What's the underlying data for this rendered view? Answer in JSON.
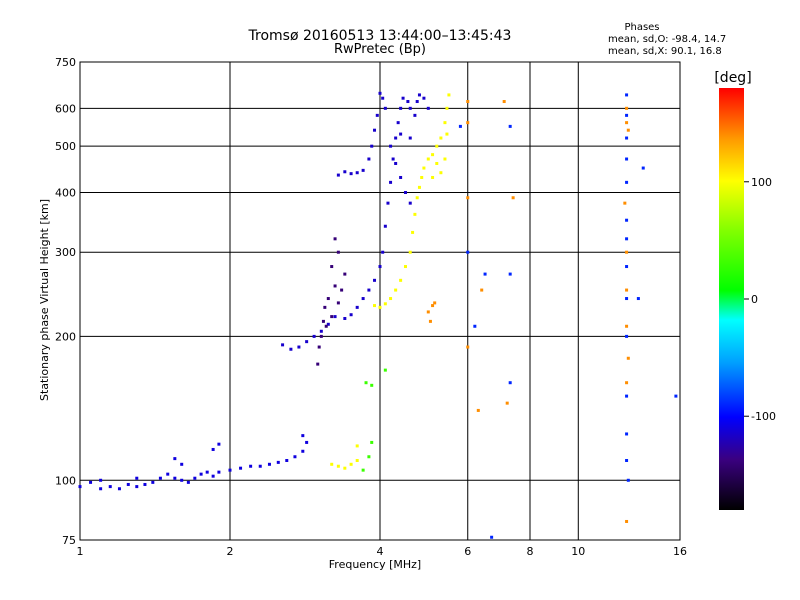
{
  "chart_data": {
    "type": "scatter",
    "title": "Tromsø 20160513 13:44:00–13:45:43",
    "subtitle": "RwPretec (Bp)",
    "xlabel": "Frequency [MHz]",
    "ylabel": "Stationary phase Virtual Height [km]",
    "x_scale": "log",
    "y_scale": "log",
    "xlim": [
      1,
      16
    ],
    "ylim": [
      75,
      750
    ],
    "x_ticks": [
      1,
      2,
      4,
      6,
      8,
      10,
      16
    ],
    "x_tick_labels": [
      "1",
      "2",
      "4",
      "6",
      "8",
      "10",
      "16"
    ],
    "y_ticks": [
      75,
      100,
      200,
      300,
      400,
      500,
      600,
      750
    ],
    "y_tick_labels": [
      "75",
      "100",
      "200",
      "300",
      "400",
      "500",
      "600",
      "750"
    ],
    "grid": true,
    "grid_x": [
      2,
      4,
      6,
      8,
      10
    ],
    "grid_y": [
      100,
      200,
      300,
      400,
      500,
      600
    ],
    "phase_stats": {
      "title": "Phases",
      "line1": "mean, sd,O:  -98.4, 14.7",
      "line2": "mean, sd,X:   90.1, 16.8"
    },
    "colorbar": {
      "label": "[deg]",
      "range": [
        -180,
        180
      ],
      "ticks": [
        100,
        0,
        -100
      ],
      "tick_labels": [
        "100",
        "0",
        "-100"
      ]
    },
    "series": [
      {
        "phase": -110,
        "points": [
          [
            1.0,
            97
          ],
          [
            1.05,
            99
          ],
          [
            1.1,
            96
          ],
          [
            1.15,
            97
          ],
          [
            1.2,
            96
          ],
          [
            1.25,
            98
          ],
          [
            1.3,
            97
          ],
          [
            1.35,
            98
          ],
          [
            1.4,
            99
          ],
          [
            1.45,
            101
          ],
          [
            1.5,
            103
          ],
          [
            1.55,
            101
          ],
          [
            1.6,
            100
          ],
          [
            1.65,
            99
          ],
          [
            1.7,
            101
          ],
          [
            1.75,
            103
          ],
          [
            1.8,
            104
          ],
          [
            1.85,
            102
          ],
          [
            1.9,
            104
          ],
          [
            2.0,
            105
          ],
          [
            2.1,
            106
          ],
          [
            2.2,
            107
          ],
          [
            2.3,
            107
          ],
          [
            2.4,
            108
          ],
          [
            2.5,
            109
          ],
          [
            2.6,
            110
          ],
          [
            2.7,
            112
          ],
          [
            2.8,
            115
          ],
          [
            2.85,
            120
          ],
          [
            2.8,
            124
          ],
          [
            1.85,
            116
          ],
          [
            1.9,
            119
          ],
          [
            1.6,
            108
          ],
          [
            1.55,
            111
          ],
          [
            1.3,
            101
          ],
          [
            1.1,
            100
          ]
        ]
      },
      {
        "phase": -115,
        "points": [
          [
            2.55,
            192
          ],
          [
            2.65,
            188
          ],
          [
            2.75,
            190
          ],
          [
            2.85,
            195
          ],
          [
            2.95,
            200
          ],
          [
            3.05,
            205
          ],
          [
            3.15,
            212
          ],
          [
            3.25,
            220
          ],
          [
            3.4,
            218
          ],
          [
            3.5,
            222
          ],
          [
            3.6,
            230
          ],
          [
            3.7,
            240
          ],
          [
            3.8,
            250
          ],
          [
            3.9,
            262
          ],
          [
            4.0,
            280
          ],
          [
            4.05,
            300
          ],
          [
            4.1,
            340
          ],
          [
            4.15,
            380
          ],
          [
            4.2,
            420
          ],
          [
            4.25,
            470
          ],
          [
            4.3,
            520
          ],
          [
            4.35,
            560
          ],
          [
            4.4,
            600
          ],
          [
            4.45,
            630
          ],
          [
            4.55,
            620
          ],
          [
            4.6,
            600
          ],
          [
            4.7,
            580
          ],
          [
            4.75,
            620
          ],
          [
            4.8,
            640
          ],
          [
            4.9,
            630
          ],
          [
            5.0,
            600
          ],
          [
            4.1,
            600
          ],
          [
            4.05,
            630
          ],
          [
            4.0,
            645
          ],
          [
            3.95,
            580
          ],
          [
            3.9,
            540
          ],
          [
            3.85,
            500
          ],
          [
            3.8,
            470
          ],
          [
            3.7,
            445
          ],
          [
            3.6,
            440
          ],
          [
            3.5,
            438
          ],
          [
            3.4,
            442
          ],
          [
            3.3,
            435
          ],
          [
            4.2,
            500
          ],
          [
            4.3,
            460
          ],
          [
            4.4,
            430
          ],
          [
            4.5,
            400
          ],
          [
            4.6,
            380
          ],
          [
            4.4,
            530
          ],
          [
            4.6,
            520
          ]
        ]
      },
      {
        "phase": -140,
        "points": [
          [
            3.0,
            175
          ],
          [
            3.02,
            190
          ],
          [
            3.05,
            200
          ],
          [
            3.08,
            215
          ],
          [
            3.1,
            230
          ],
          [
            3.12,
            210
          ],
          [
            3.15,
            240
          ],
          [
            3.2,
            220
          ],
          [
            3.25,
            255
          ],
          [
            3.3,
            235
          ],
          [
            3.35,
            250
          ],
          [
            3.4,
            270
          ],
          [
            3.3,
            300
          ],
          [
            3.25,
            320
          ],
          [
            3.2,
            280
          ]
        ]
      },
      {
        "phase": 100,
        "points": [
          [
            3.9,
            232
          ],
          [
            4.0,
            230
          ],
          [
            4.1,
            234
          ],
          [
            4.2,
            240
          ],
          [
            4.3,
            250
          ],
          [
            4.4,
            262
          ],
          [
            4.5,
            280
          ],
          [
            4.6,
            300
          ],
          [
            4.65,
            330
          ],
          [
            4.7,
            360
          ],
          [
            4.75,
            390
          ],
          [
            4.8,
            410
          ],
          [
            4.85,
            430
          ],
          [
            4.9,
            450
          ],
          [
            5.0,
            470
          ],
          [
            5.1,
            480
          ],
          [
            5.2,
            500
          ],
          [
            5.3,
            520
          ],
          [
            5.4,
            560
          ],
          [
            5.45,
            600
          ],
          [
            5.5,
            640
          ],
          [
            5.45,
            530
          ],
          [
            5.4,
            470
          ],
          [
            5.3,
            440
          ],
          [
            5.2,
            460
          ],
          [
            5.1,
            430
          ],
          [
            3.2,
            108
          ],
          [
            3.3,
            107
          ],
          [
            3.4,
            106
          ],
          [
            3.5,
            108
          ],
          [
            3.6,
            110
          ],
          [
            3.6,
            118
          ]
        ]
      },
      {
        "phase": 140,
        "points": [
          [
            5.0,
            225
          ],
          [
            5.1,
            232
          ],
          [
            5.15,
            235
          ],
          [
            5.05,
            215
          ],
          [
            6.0,
            620
          ],
          [
            6.0,
            560
          ],
          [
            6.0,
            390
          ],
          [
            7.1,
            620
          ],
          [
            7.4,
            390
          ],
          [
            6.0,
            190
          ],
          [
            6.3,
            140
          ],
          [
            6.4,
            250
          ],
          [
            7.2,
            145
          ],
          [
            12.5,
            600
          ],
          [
            12.5,
            560
          ],
          [
            12.6,
            540
          ],
          [
            12.4,
            380
          ],
          [
            12.5,
            300
          ],
          [
            12.5,
            250
          ],
          [
            12.5,
            210
          ],
          [
            12.6,
            180
          ],
          [
            12.5,
            160
          ],
          [
            12.5,
            82
          ]
        ]
      },
      {
        "phase": -90,
        "points": [
          [
            5.8,
            550
          ],
          [
            6.0,
            300
          ],
          [
            6.2,
            210
          ],
          [
            6.5,
            270
          ],
          [
            6.7,
            76
          ],
          [
            7.3,
            160
          ],
          [
            7.3,
            270
          ],
          [
            7.3,
            550
          ],
          [
            12.5,
            640
          ],
          [
            12.5,
            580
          ],
          [
            12.5,
            520
          ],
          [
            12.5,
            470
          ],
          [
            12.5,
            420
          ],
          [
            12.5,
            350
          ],
          [
            12.5,
            320
          ],
          [
            12.5,
            280
          ],
          [
            12.5,
            240
          ],
          [
            12.5,
            200
          ],
          [
            12.5,
            150
          ],
          [
            12.5,
            125
          ],
          [
            12.5,
            110
          ],
          [
            12.6,
            100
          ],
          [
            13.2,
            240
          ],
          [
            13.5,
            450
          ],
          [
            15.7,
            150
          ]
        ]
      },
      {
        "phase": 30,
        "points": [
          [
            3.7,
            105
          ],
          [
            3.8,
            112
          ],
          [
            3.85,
            120
          ],
          [
            3.75,
            160
          ],
          [
            3.85,
            158
          ],
          [
            4.1,
            170
          ]
        ]
      }
    ]
  }
}
